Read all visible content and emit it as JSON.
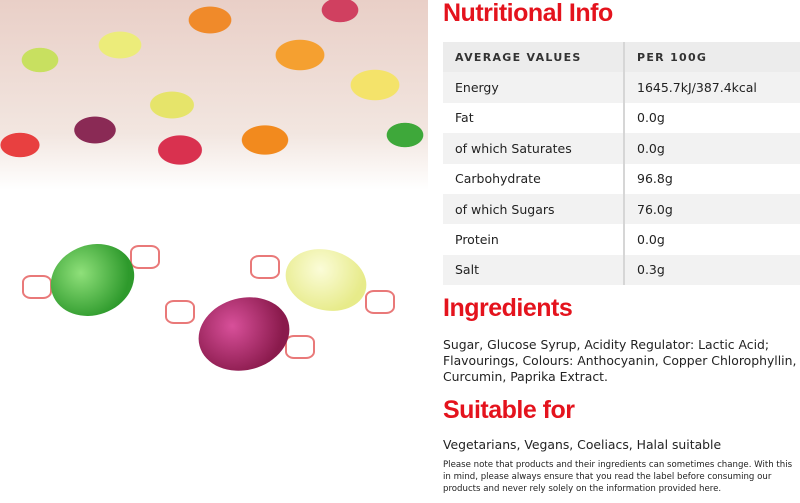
{
  "nutrition": {
    "title": "Nutritional Info",
    "headers": [
      "AVERAGE VALUES",
      "PER 100G"
    ],
    "rows": [
      [
        "Energy",
        "1645.7kJ/387.4kcal"
      ],
      [
        "Fat",
        "0.0g"
      ],
      [
        "of which Saturates",
        "0.0g"
      ],
      [
        "Carbohydrate",
        "96.8g"
      ],
      [
        "of which Sugars",
        "76.0g"
      ],
      [
        "Protein",
        "0.0g"
      ],
      [
        "Salt",
        "0.3g"
      ]
    ]
  },
  "ingredients": {
    "title": "Ingredients",
    "text": "Sugar, Glucose Syrup, Acidity Regulator: Lactic Acid; Flavourings, Colours: Anthocyanin, Copper Chlorophyllin, Curcumin, Paprika Extract."
  },
  "suitable": {
    "title": "Suitable for",
    "text": "Vegetarians, Vegans, Coeliacs, Halal suitable",
    "note": "Please note that products and their ingredients can sometimes change. With this in mind, please always ensure that you read the label before consuming our products and never rely solely on the information provided here."
  },
  "colors": {
    "accent": "#e4131d"
  }
}
